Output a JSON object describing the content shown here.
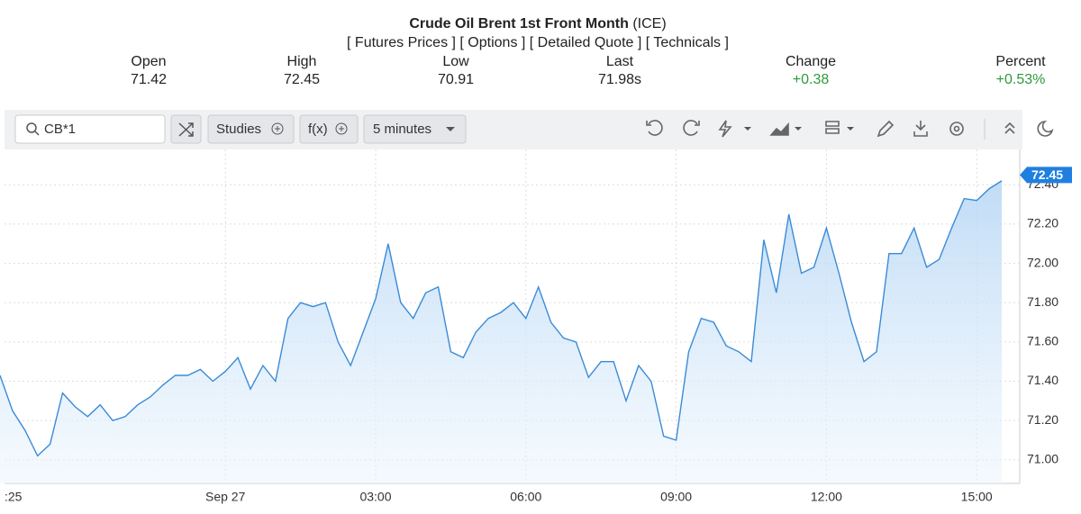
{
  "header": {
    "title": "Crude Oil Brent 1st Front Month",
    "exchange": "(ICE)",
    "links": [
      "[ Futures Prices ]",
      "[ Options ]",
      "[ Detailed Quote ]",
      "[ Technicals ]"
    ],
    "stats": [
      {
        "label": "Open",
        "value": "71.42"
      },
      {
        "label": "High",
        "value": "72.45"
      },
      {
        "label": "Low",
        "value": "70.91"
      },
      {
        "label": "Last",
        "value": "71.98s"
      },
      {
        "label": "Change",
        "value": "+0.38"
      },
      {
        "label": "Percent",
        "value": "+0.53%"
      }
    ]
  },
  "toolbar": {
    "symbol": "CB*1",
    "studies": "Studies",
    "function": "f(x)",
    "interval": "5 minutes"
  },
  "chart_data": {
    "type": "area",
    "color": "#3a8bd6",
    "categories": [
      ":25",
      null,
      null,
      null,
      null,
      null,
      null,
      null,
      null,
      null,
      null,
      null,
      null,
      null,
      null,
      null,
      null,
      null,
      "Sep 27",
      null,
      null,
      null,
      null,
      null,
      null,
      null,
      null,
      null,
      null,
      null,
      "03:00",
      null,
      null,
      null,
      null,
      null,
      null,
      null,
      null,
      null,
      null,
      null,
      "06:00",
      null,
      null,
      null,
      null,
      null,
      null,
      null,
      null,
      null,
      null,
      null,
      "09:00",
      null,
      null,
      null,
      null,
      null,
      null,
      null,
      null,
      null,
      null,
      null,
      "12:00",
      null,
      null,
      null,
      null,
      null,
      null,
      null,
      null,
      null,
      null,
      null,
      "15:00",
      null,
      null
    ],
    "values": [
      71.43,
      71.25,
      71.15,
      71.02,
      71.08,
      71.34,
      71.27,
      71.22,
      71.28,
      71.2,
      71.22,
      71.28,
      71.32,
      71.38,
      71.43,
      71.43,
      71.46,
      71.4,
      71.45,
      71.52,
      71.36,
      71.48,
      71.4,
      71.72,
      71.8,
      71.78,
      71.8,
      71.6,
      71.48,
      71.65,
      71.82,
      72.1,
      71.8,
      71.72,
      71.85,
      71.88,
      71.55,
      71.52,
      71.65,
      71.72,
      71.75,
      71.8,
      71.72,
      71.88,
      71.7,
      71.62,
      71.6,
      71.42,
      71.5,
      71.5,
      71.3,
      71.48,
      71.4,
      71.12,
      71.1,
      71.55,
      71.72,
      71.7,
      71.58,
      71.55,
      71.5,
      72.12,
      71.85,
      72.25,
      71.95,
      71.98,
      72.18,
      71.95,
      71.7,
      71.5,
      71.55,
      72.05,
      72.05,
      72.18,
      71.98,
      72.02,
      72.18,
      72.33,
      72.32,
      72.38,
      72.42
    ],
    "price_badge": {
      "value": 72.45,
      "label": "72.45"
    },
    "ylim": [
      70.88,
      72.58
    ],
    "yticks": [
      {
        "value": 71,
        "label": "71.00"
      },
      {
        "value": 71.2,
        "label": "71.20"
      },
      {
        "value": 71.4,
        "label": "71.40"
      },
      {
        "value": 71.6,
        "label": "71.60"
      },
      {
        "value": 71.8,
        "label": "71.80"
      },
      {
        "value": 72,
        "label": "72.00"
      },
      {
        "value": 72.2,
        "label": "72.20"
      },
      {
        "value": 72.4,
        "label": "72.40"
      }
    ],
    "grid": true
  }
}
